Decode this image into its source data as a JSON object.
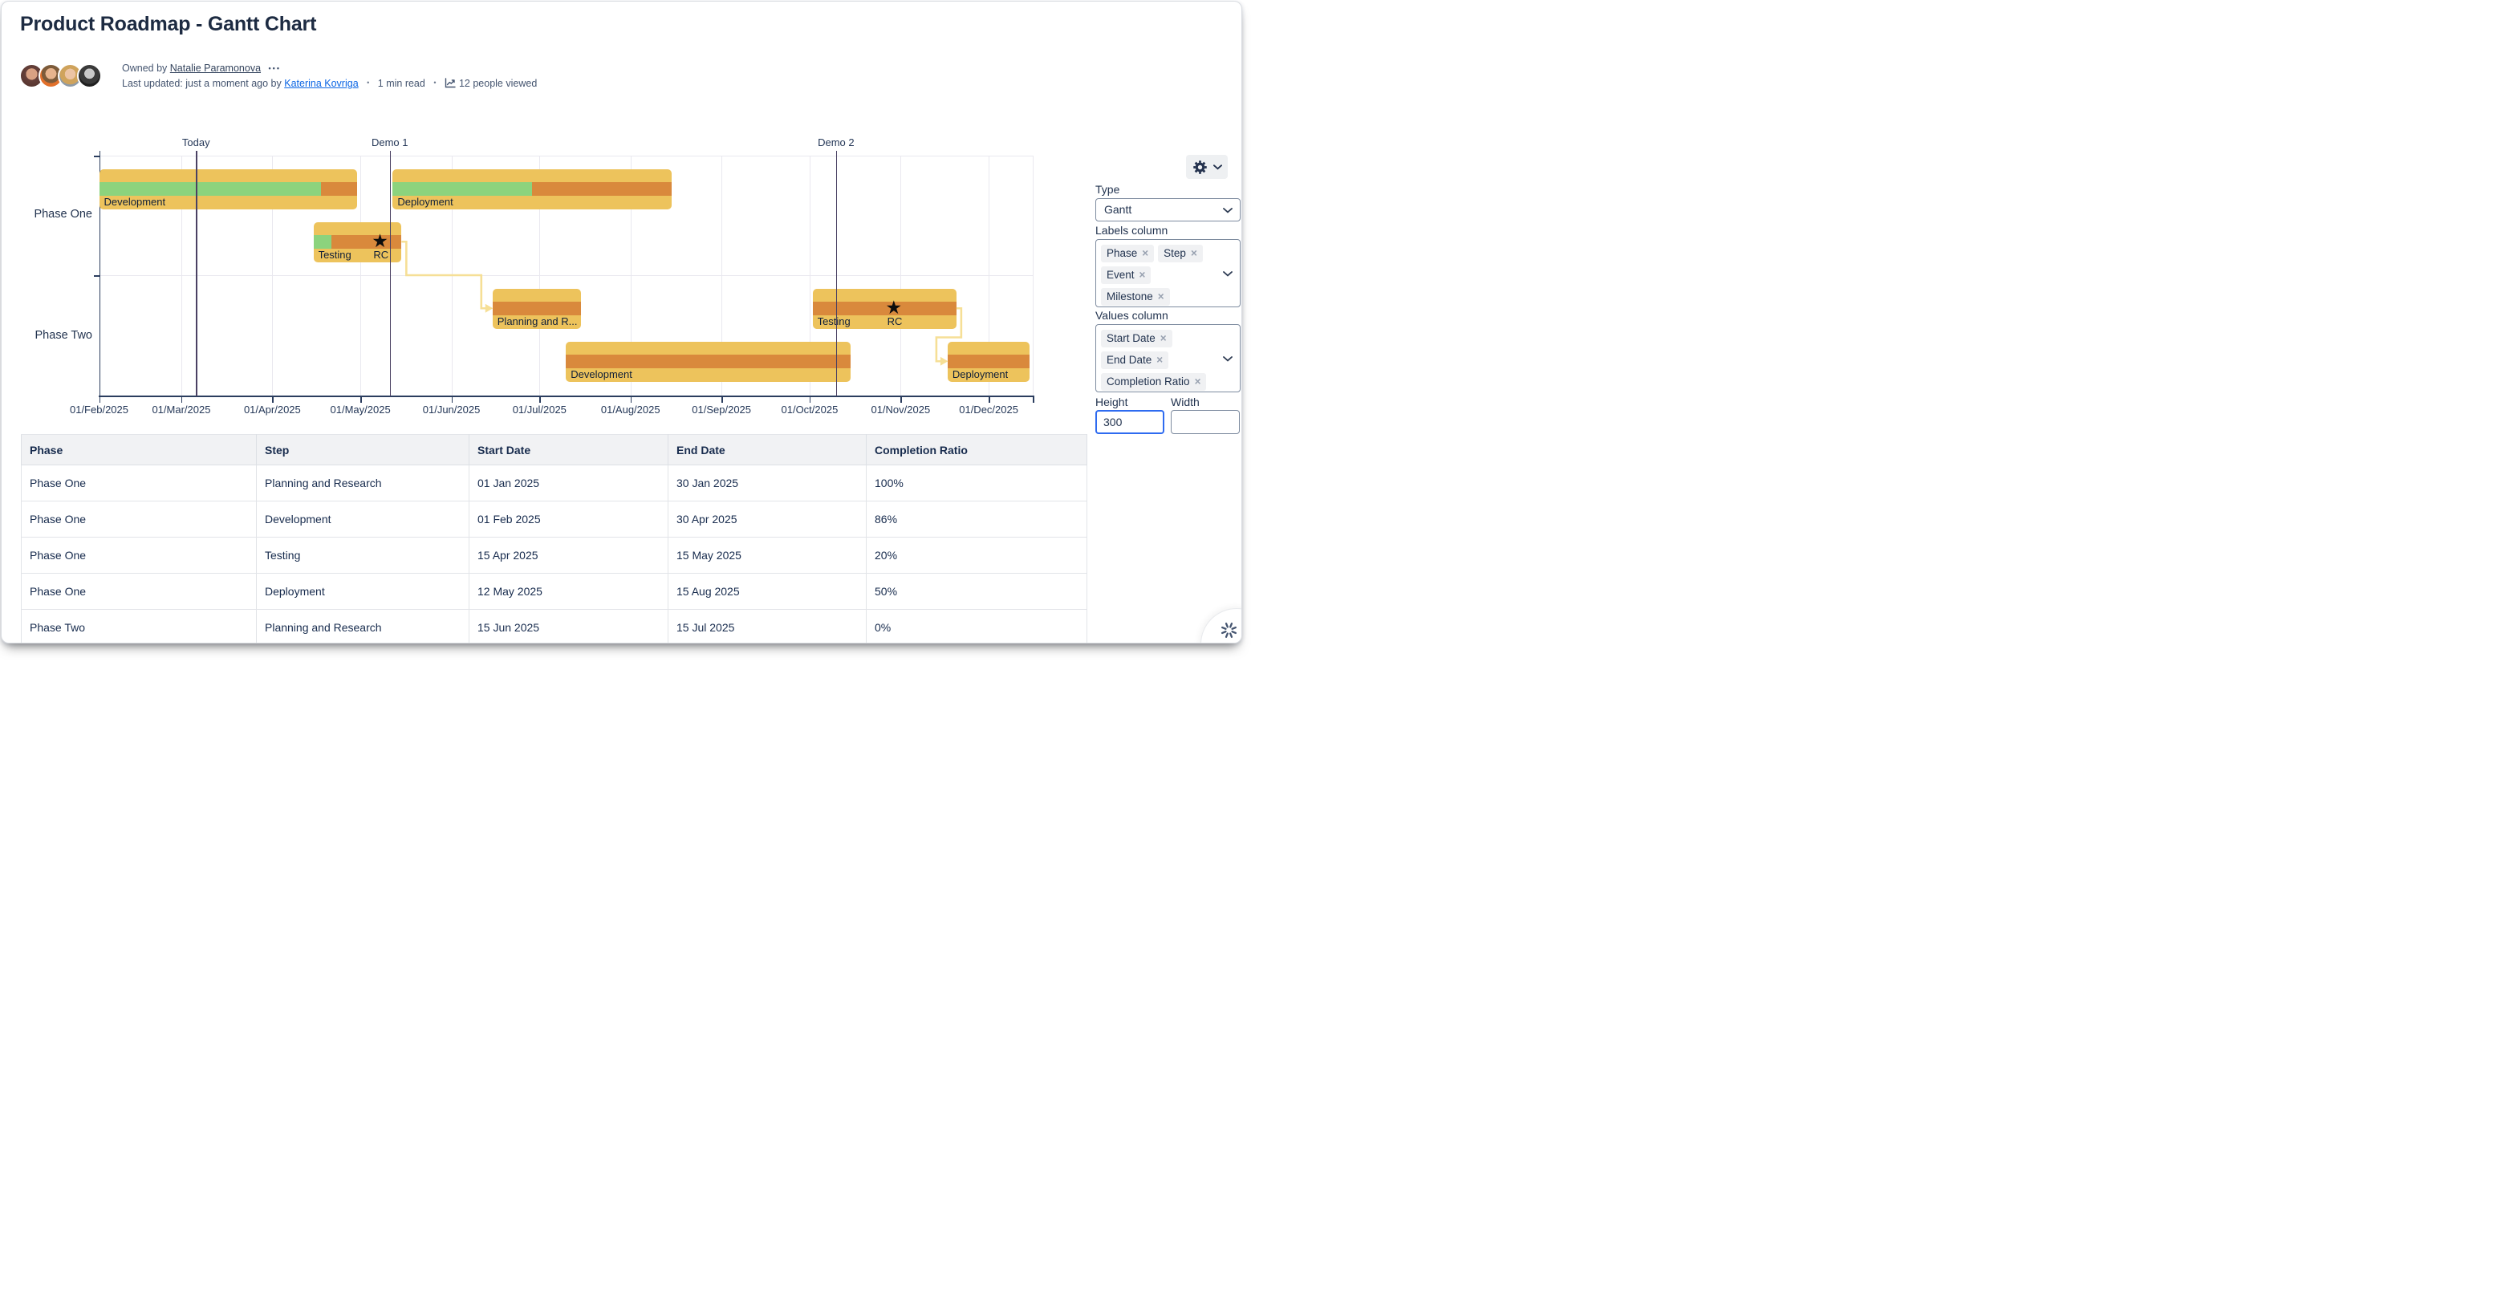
{
  "page": {
    "title": "Product Roadmap - Gantt Chart"
  },
  "byline": {
    "owned_by_label": "Owned by",
    "owner": "Natalie Paramonova",
    "more_menu": "•••",
    "last_updated_prefix": "Last updated: just a moment ago by",
    "updated_by": "Katerina Kovriga",
    "separator": "•",
    "read_time": "1 min read",
    "views": "12 people viewed",
    "avatar_names": [
      "avatar-1",
      "avatar-2",
      "avatar-3",
      "avatar-4"
    ]
  },
  "chart_data": {
    "type": "gantt",
    "x_domain": [
      "2025-02-01",
      "2025-12-16"
    ],
    "x_ticks": [
      {
        "label": "01/Feb/2025",
        "date": "2025-02-01"
      },
      {
        "label": "01/Mar/2025",
        "date": "2025-03-01"
      },
      {
        "label": "01/Apr/2025",
        "date": "2025-04-01"
      },
      {
        "label": "01/May/2025",
        "date": "2025-05-01"
      },
      {
        "label": "01/Jun/2025",
        "date": "2025-06-01"
      },
      {
        "label": "01/Jul/2025",
        "date": "2025-07-01"
      },
      {
        "label": "01/Aug/2025",
        "date": "2025-08-01"
      },
      {
        "label": "01/Sep/2025",
        "date": "2025-09-01"
      },
      {
        "label": "01/Oct/2025",
        "date": "2025-10-01"
      },
      {
        "label": "01/Nov/2025",
        "date": "2025-11-01"
      },
      {
        "label": "01/Dec/2025",
        "date": "2025-12-01"
      }
    ],
    "markers": [
      {
        "label": "Today",
        "date": "2025-03-06"
      },
      {
        "label": "Demo 1",
        "date": "2025-05-11"
      },
      {
        "label": "Demo 2",
        "date": "2025-10-10"
      }
    ],
    "phases": [
      {
        "name": "Phase One",
        "bars": [
          {
            "label": "Development",
            "row": 0,
            "start": "2025-02-01",
            "end": "2025-04-30",
            "completion": 0.86
          },
          {
            "label": "Testing",
            "row": 1,
            "start": "2025-04-15",
            "end": "2025-05-15",
            "completion": 0.2,
            "milestone": {
              "label": "RC",
              "date": "2025-05-08",
              "glyph": "★"
            }
          },
          {
            "label": "Deployment",
            "row": 0,
            "start": "2025-05-12",
            "end": "2025-08-15",
            "completion": 0.5
          }
        ]
      },
      {
        "name": "Phase Two",
        "bars": [
          {
            "label": "Planning and R...",
            "row": 0,
            "start": "2025-06-15",
            "end": "2025-07-15",
            "completion": 0
          },
          {
            "label": "Development",
            "row": 1,
            "start": "2025-07-10",
            "end": "2025-10-15",
            "completion": 0
          },
          {
            "label": "Testing",
            "row": 0,
            "start": "2025-10-02",
            "end": "2025-11-20",
            "completion": 0,
            "milestone": {
              "label": "RC",
              "date": "2025-10-30",
              "glyph": "★"
            }
          },
          {
            "label": "Deployment",
            "row": 1,
            "start": "2025-11-17",
            "end": "2025-12-15",
            "completion": 0
          }
        ]
      }
    ],
    "connectors": [
      {
        "from_phase": 0,
        "from_bar": 1,
        "to_phase": 1,
        "to_bar": 0
      },
      {
        "from_phase": 1,
        "from_bar": 2,
        "to_phase": 1,
        "to_bar": 3
      }
    ],
    "colors": {
      "bar": "#edc35c",
      "remaining": "#d9893c",
      "progress": "#8cd37d",
      "connector": "#f6df96",
      "marker_line": "#4a4163",
      "grid": "#e9e8ef",
      "axis": "#2b3d5e",
      "text": "#253858"
    },
    "legend": "off",
    "grid": "on"
  },
  "panel": {
    "gear_icon": "gear",
    "type_label": "Type",
    "type_value": "Gantt",
    "labels_column": {
      "label": "Labels column",
      "tags": [
        "Phase",
        "Step",
        "Event",
        "Milestone"
      ]
    },
    "values_column": {
      "label": "Values column",
      "tags": [
        "Start Date",
        "End Date",
        "Completion Ratio"
      ]
    },
    "height": {
      "label": "Height",
      "value": "300"
    },
    "width": {
      "label": "Width",
      "value": ""
    },
    "close_glyph": "×"
  },
  "table": {
    "columns": [
      "Phase",
      "Step",
      "Start Date",
      "End Date",
      "Completion Ratio"
    ],
    "rows": [
      [
        "Phase One",
        "Planning and Research",
        "01 Jan 2025",
        "30 Jan 2025",
        "100%"
      ],
      [
        "Phase One",
        "Development",
        "01 Feb 2025",
        "30 Apr 2025",
        "86%"
      ],
      [
        "Phase One",
        "Testing",
        "15 Apr 2025",
        "15 May 2025",
        "20%"
      ],
      [
        "Phase One",
        "Deployment",
        "12 May 2025",
        "15 Aug 2025",
        "50%"
      ],
      [
        "Phase Two",
        "Planning and Research",
        "15 Jun 2025",
        "15 Jul 2025",
        "0%"
      ]
    ]
  }
}
